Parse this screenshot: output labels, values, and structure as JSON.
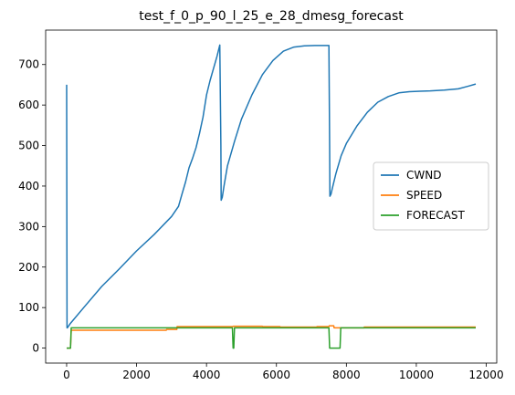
{
  "chart_data": {
    "type": "line",
    "title": "test_f_0_p_90_l_25_e_28_dmesg_forecast",
    "xlabel": "",
    "ylabel": "",
    "xlim": [
      -600,
      12300
    ],
    "ylim": [
      -37,
      785
    ],
    "xticks": [
      0,
      2000,
      4000,
      6000,
      8000,
      10000,
      12000
    ],
    "yticks": [
      0,
      100,
      200,
      300,
      400,
      500,
      600,
      700
    ],
    "grid": false,
    "legend_position": "center-right",
    "series": [
      {
        "name": "CWND",
        "color": "#1f77b4",
        "x": [
          0,
          10,
          20,
          100,
          500,
          1000,
          1500,
          2000,
          2500,
          3000,
          3200,
          3300,
          3400,
          3500,
          3600,
          3700,
          3800,
          3900,
          4000,
          4100,
          4200,
          4300,
          4380,
          4410,
          4420,
          4450,
          4500,
          4600,
          4800,
          5000,
          5300,
          5600,
          5900,
          6200,
          6500,
          6800,
          7100,
          7300,
          7500,
          7520,
          7530,
          7560,
          7600,
          7700,
          7850,
          8000,
          8300,
          8600,
          8900,
          9200,
          9500,
          9800,
          10100,
          10400,
          10800,
          11200,
          11500,
          11700
        ],
        "values": [
          650,
          50,
          50,
          60,
          101,
          152,
          195,
          240,
          280,
          325,
          350,
          380,
          410,
          445,
          468,
          495,
          530,
          570,
          625,
          660,
          690,
          720,
          748,
          500,
          365,
          372,
          400,
          450,
          510,
          565,
          625,
          675,
          710,
          733,
          743,
          746,
          747,
          747,
          747,
          500,
          375,
          380,
          395,
          430,
          475,
          505,
          548,
          582,
          607,
          621,
          630,
          633,
          634,
          635,
          637,
          640,
          647,
          652
        ]
      },
      {
        "name": "SPEED",
        "color": "#ff7f0e",
        "x": [
          0,
          110,
          130,
          2850,
          2860,
          3150,
          3160,
          4750,
          4760,
          5600,
          5610,
          6100,
          6110,
          7150,
          7160,
          7500,
          7510,
          7640,
          7650,
          8500,
          8510,
          11700
        ],
        "values": [
          0,
          0,
          44,
          44,
          46,
          46,
          53,
          53,
          54,
          54,
          53,
          53,
          52,
          52,
          53,
          53,
          55,
          55,
          50,
          50,
          52,
          52
        ]
      },
      {
        "name": "FORECAST",
        "color": "#2ca02c",
        "x": [
          0,
          110,
          130,
          4740,
          4760,
          4780,
          4800,
          7500,
          7520,
          7820,
          7840,
          11700
        ],
        "values": [
          0,
          0,
          50,
          50,
          0,
          0,
          50,
          50,
          0,
          0,
          50,
          50
        ]
      }
    ]
  }
}
